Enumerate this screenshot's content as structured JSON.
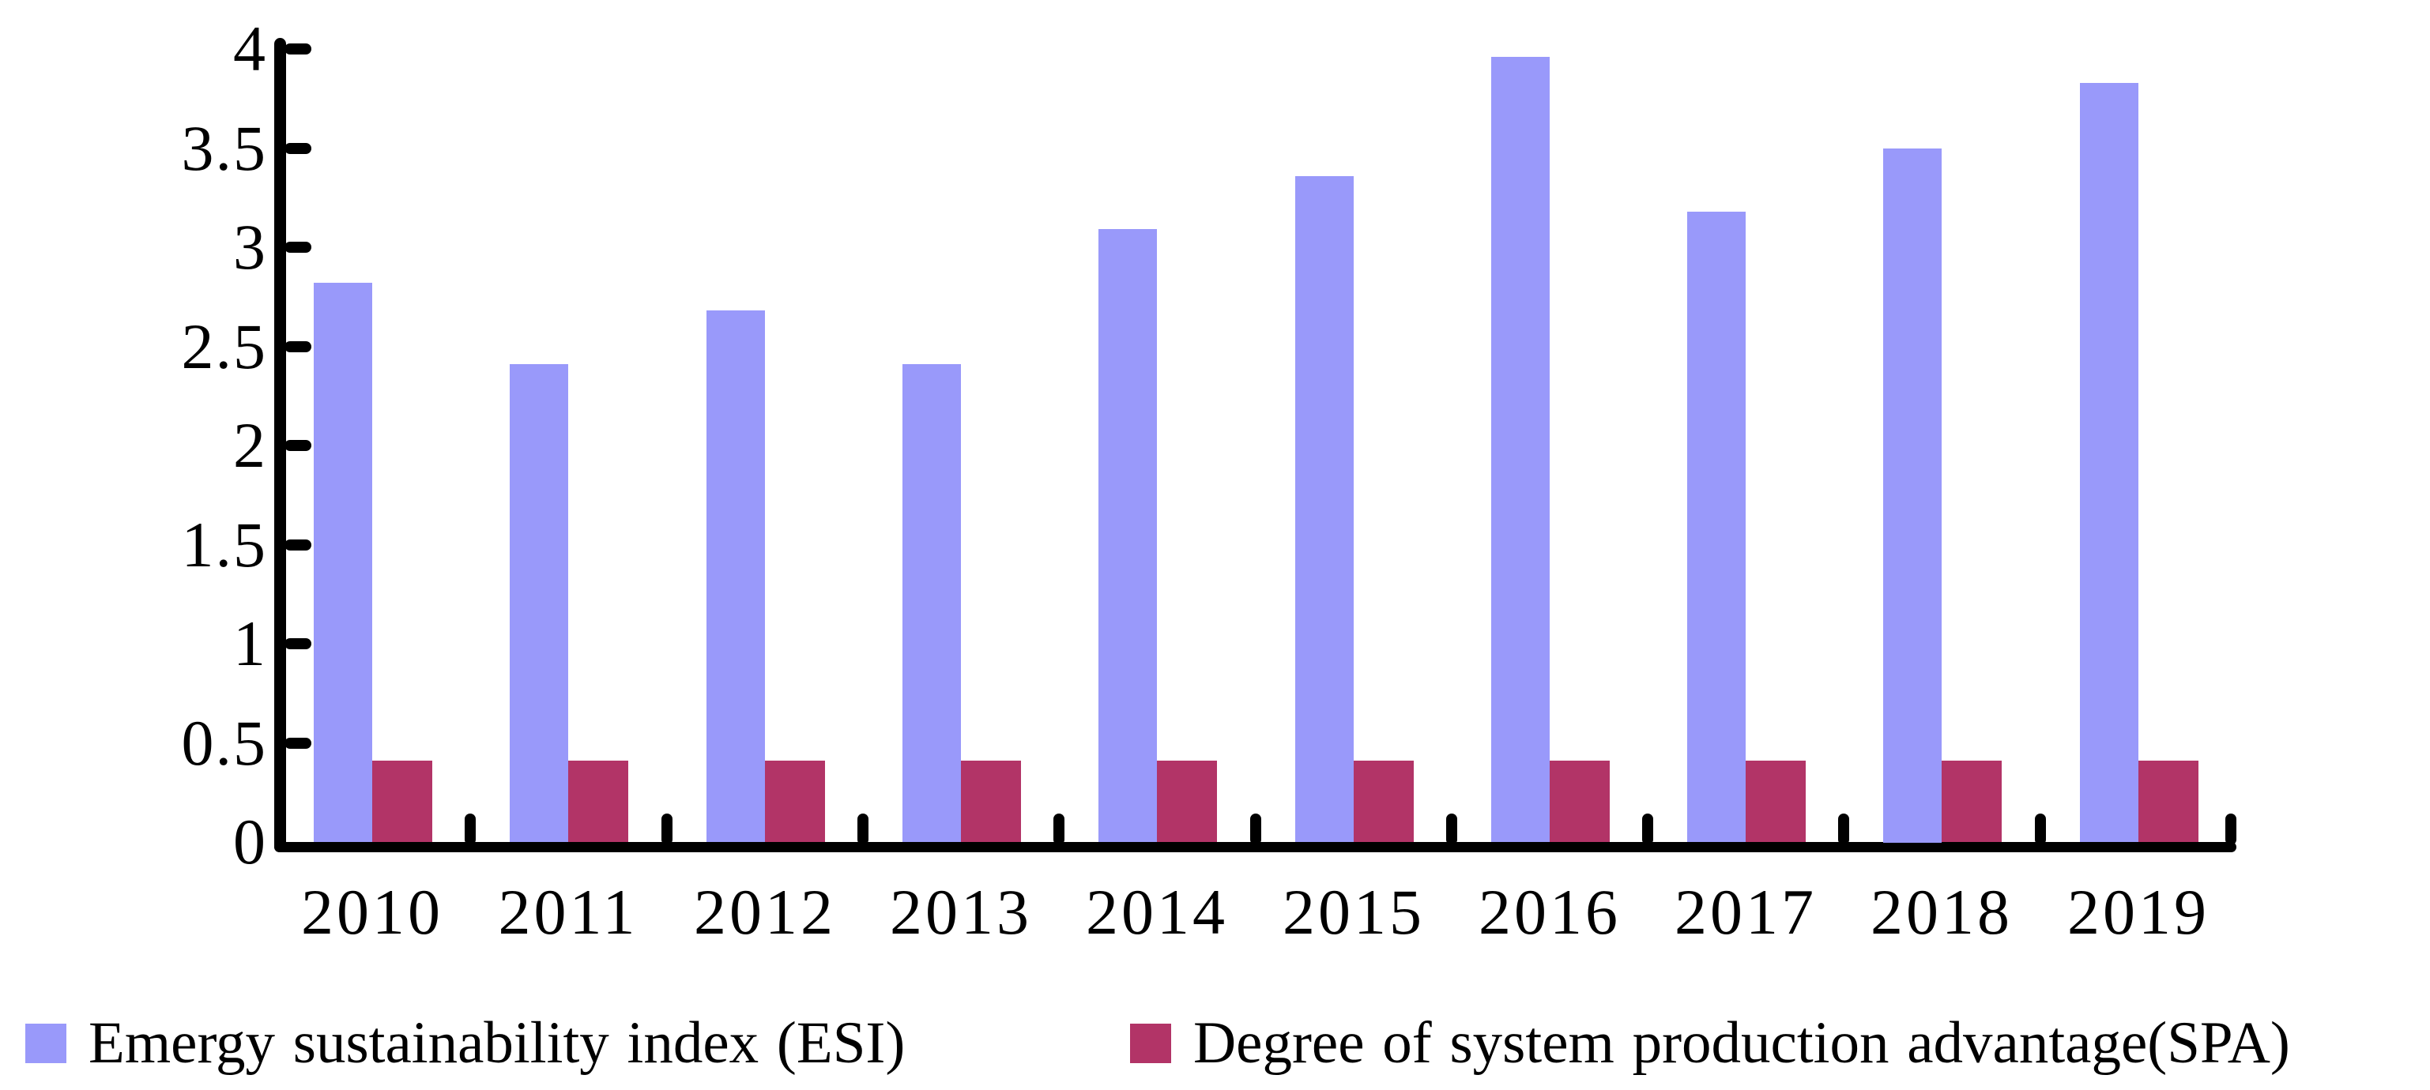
{
  "chart_data": {
    "type": "bar",
    "title": "",
    "xlabel": "",
    "ylabel": "",
    "categories": [
      "2010",
      "2011",
      "2012",
      "2013",
      "2014",
      "2015",
      "2016",
      "2017",
      "2018",
      "2019"
    ],
    "series": [
      {
        "key": "esi",
        "name": "Emergy sustainability index (ESI)",
        "color": "#9999FA",
        "values": [
          2.82,
          2.41,
          2.68,
          2.41,
          3.09,
          3.36,
          3.96,
          3.18,
          3.5,
          3.83
        ]
      },
      {
        "key": "spa",
        "name": "Degree of system production advantage(SPA)",
        "color": "#B23467",
        "values": [
          0.41,
          0.41,
          0.41,
          0.41,
          0.41,
          0.41,
          0.41,
          0.41,
          0.41,
          0.41
        ]
      }
    ],
    "ylim": [
      0,
      4
    ],
    "ytick_step": 0.5,
    "ytick_labels": [
      "0",
      "0.5",
      "1",
      "1.5",
      "2",
      "2.5",
      "3",
      "3.5",
      "4"
    ],
    "grid": false,
    "legend_position": "bottom",
    "axis_color": "#000000",
    "background_color": "#FFFFFF"
  }
}
